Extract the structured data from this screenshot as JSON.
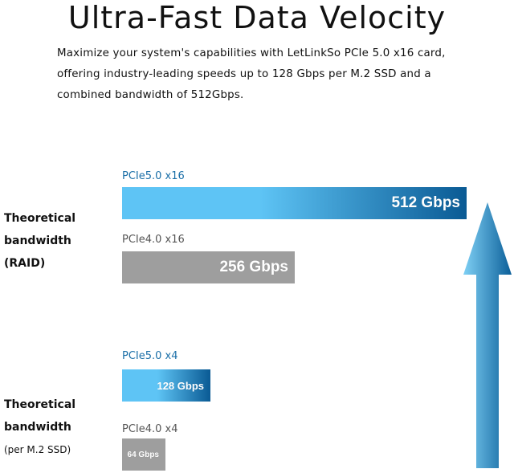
{
  "header": {
    "title": "Ultra-Fast Data Velocity",
    "description_lines": [
      "Maximize your system's capabilities with LetLinkSo PCIe 5.0 x16 card,",
      "offering industry-leading speeds up to 128 Gbps per M.2 SSD and a",
      "combined bandwidth of 512Gbps."
    ]
  },
  "chart_data": {
    "type": "bar",
    "orientation": "horizontal",
    "unit": "Gbps",
    "groups": [
      {
        "label_lines": [
          "Theoretical",
          "bandwidth",
          "(RAID)"
        ],
        "bars": [
          {
            "name": "PCIe5.0 x16",
            "value": 512,
            "label": "512 Gbps",
            "color": "#1a78c2"
          },
          {
            "name": "PCIe4.0 x16",
            "value": 256,
            "label": "256 Gbps",
            "color": "#9e9e9e"
          }
        ]
      },
      {
        "label_lines": [
          "Theoretical",
          "bandwidth",
          "(per M.2 SSD)"
        ],
        "bars": [
          {
            "name": "PCIe5.0 x4",
            "value": 128,
            "label": "128 Gbps",
            "color": "#1a78c2"
          },
          {
            "name": "PCIe4.0 x4",
            "value": 64,
            "label": "64 Gbps",
            "color": "#9e9e9e"
          }
        ]
      }
    ],
    "xlim": [
      0,
      512
    ]
  },
  "colors": {
    "pcie5_gradient_start": "#5ec4f5",
    "pcie5_gradient_end": "#0a5a94",
    "pcie5_label": "#1b6fa8",
    "pcie4_bar": "#9e9e9e",
    "pcie4_label": "#555555",
    "arrow_light": "#7fd0f5",
    "arrow_dark": "#0b5f99"
  },
  "decor": {
    "arrow": "upward-arrow-icon"
  }
}
